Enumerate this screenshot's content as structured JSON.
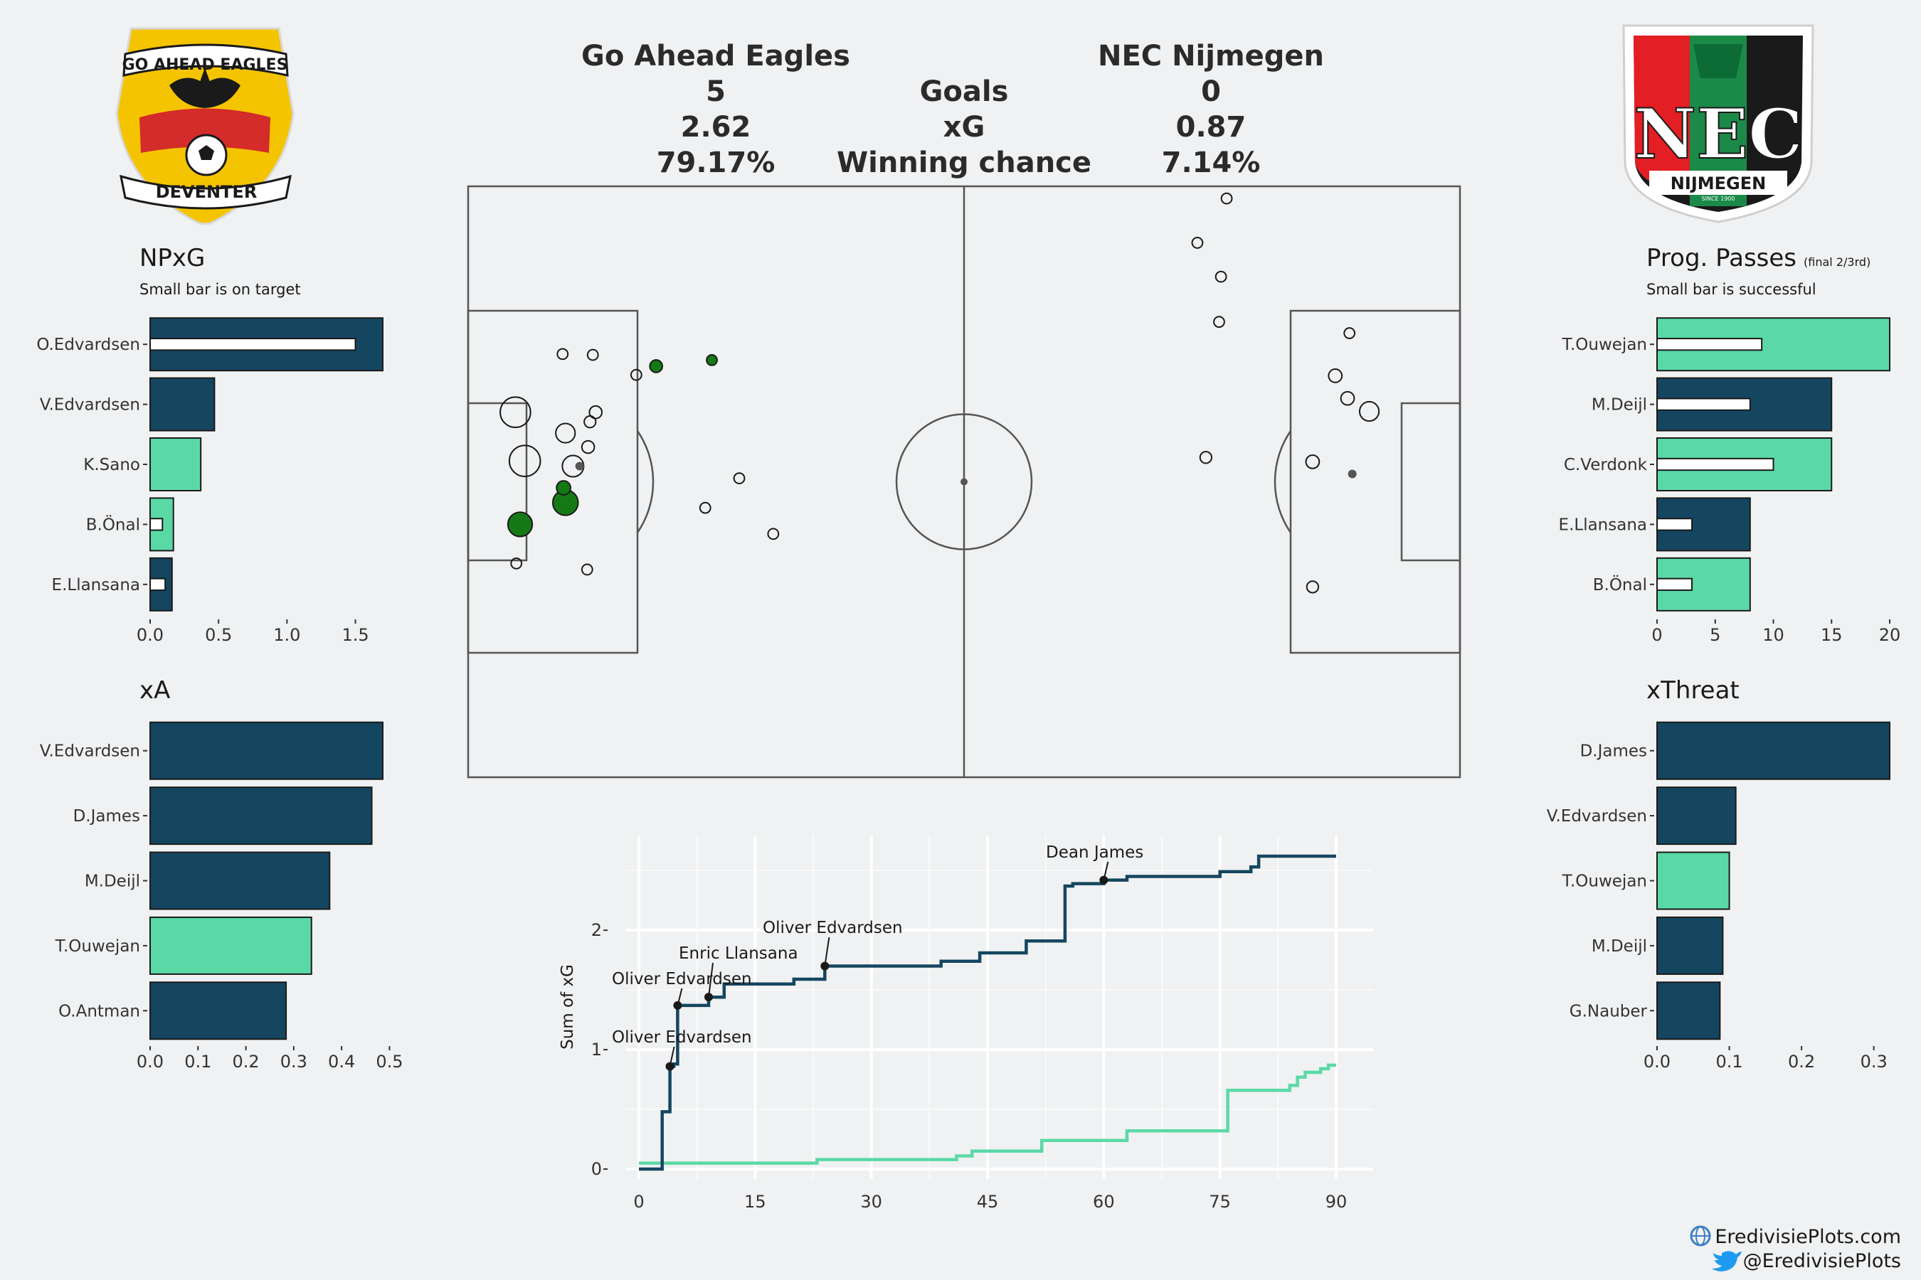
{
  "header": {
    "home_team": "Go Ahead Eagles",
    "away_team": "NEC Nijmegen",
    "rows": [
      {
        "label": "Goals",
        "home": "5",
        "away": "0"
      },
      {
        "label": "xG",
        "home": "2.62",
        "away": "0.87"
      },
      {
        "label": "Winning chance",
        "home": "79.17%",
        "away": "7.14%"
      }
    ]
  },
  "logos": {
    "home": {
      "top": "GO AHEAD EAGLES",
      "bottom": "DEVENTER"
    },
    "away": {
      "main": "NEC",
      "sub": "NIJMEGEN",
      "since": "SINCE 1900"
    }
  },
  "colors": {
    "home": "#154660",
    "away": "#5ad9a6",
    "goal": "#157a15",
    "background": "#f0f1f2"
  },
  "footer": {
    "site": "EredivisiePlots.com",
    "handle": "@EredivisiePlots",
    "icons": [
      "globe-icon",
      "twitter-bird-icon"
    ]
  },
  "chart_data": [
    {
      "id": "npxg",
      "type": "bar",
      "orientation": "horizontal",
      "title": "NPxG",
      "subtitle": "Small bar is on target",
      "categories": [
        "O.Edvardsen",
        "V.Edvardsen",
        "K.Sano",
        "B.Önal",
        "E.Llansana"
      ],
      "team": [
        "home",
        "home",
        "away",
        "away",
        "home"
      ],
      "values": [
        1.7,
        0.47,
        0.37,
        0.17,
        0.16
      ],
      "inner_values": [
        1.5,
        0,
        0,
        0.09,
        0.11
      ],
      "xlim": [
        0,
        1.7
      ],
      "xticks": [
        0,
        0.5,
        1,
        1.5
      ],
      "xtick_labels": [
        "0.0",
        "0.5",
        "1.0",
        "1.5"
      ]
    },
    {
      "id": "xa",
      "type": "bar",
      "orientation": "horizontal",
      "title": "xA",
      "categories": [
        "V.Edvardsen",
        "D.James",
        "M.Deijl",
        "T.Ouwejan",
        "O.Antman"
      ],
      "team": [
        "home",
        "home",
        "home",
        "away",
        "home"
      ],
      "values": [
        0.486,
        0.463,
        0.375,
        0.337,
        0.284
      ],
      "xlim": [
        0,
        0.486
      ],
      "xticks": [
        0,
        0.1,
        0.2,
        0.3,
        0.4,
        0.5
      ],
      "xtick_labels": [
        "0.0",
        "0.1",
        "0.2",
        "0.3",
        "0.4",
        "0.5"
      ]
    },
    {
      "id": "progpasses",
      "type": "bar",
      "orientation": "horizontal",
      "title": "Prog. Passes",
      "title_suffix": "(final 2/3rd)",
      "subtitle": "Small bar is successful",
      "categories": [
        "T.Ouwejan",
        "M.Deijl",
        "C.Verdonk",
        "E.Llansana",
        "B.Önal"
      ],
      "team": [
        "away",
        "home",
        "away",
        "home",
        "away"
      ],
      "values": [
        20,
        15,
        15,
        8,
        8
      ],
      "inner_values": [
        9,
        8,
        10,
        3,
        3
      ],
      "xlim": [
        0,
        20
      ],
      "xticks": [
        0,
        5,
        10,
        15,
        20
      ],
      "xtick_labels": [
        "0",
        "5",
        "10",
        "15",
        "20"
      ]
    },
    {
      "id": "xthreat",
      "type": "bar",
      "orientation": "horizontal",
      "title": "xThreat",
      "categories": [
        "D.James",
        "V.Edvardsen",
        "T.Ouwejan",
        "M.Deijl",
        "G.Nauber"
      ],
      "team": [
        "home",
        "home",
        "away",
        "home",
        "home"
      ],
      "values": [
        0.322,
        0.109,
        0.1,
        0.091,
        0.087
      ],
      "xlim": [
        0,
        0.322
      ],
      "xticks": [
        0,
        0.1,
        0.2,
        0.3
      ],
      "xtick_labels": [
        "0.0",
        "0.1",
        "0.2",
        "0.3"
      ]
    },
    {
      "id": "shotmap",
      "type": "scatter",
      "pitch": {
        "length": 105,
        "width": 68
      },
      "shots": [
        {
          "x": 10.3,
          "y": 39.6,
          "xg": 0.16,
          "team": "home",
          "goal": false,
          "on_target": false
        },
        {
          "x": 11.1,
          "y": 35.8,
          "xg": 0.21,
          "team": "home",
          "goal": false,
          "on_target": false
        },
        {
          "x": 5.5,
          "y": 29.1,
          "xg": 0.3,
          "team": "home",
          "goal": true,
          "on_target": true
        },
        {
          "x": 5.0,
          "y": 42.0,
          "xg": 0.52,
          "team": "home",
          "goal": false,
          "on_target": false
        },
        {
          "x": 11.8,
          "y": 35.8,
          "xg": 0.02,
          "team": "home",
          "goal": false,
          "on_target": true
        },
        {
          "x": 6.0,
          "y": 36.4,
          "xg": 0.55,
          "team": "home",
          "goal": false,
          "on_target": false
        },
        {
          "x": 10.3,
          "y": 31.6,
          "xg": 0.33,
          "team": "home",
          "goal": true,
          "on_target": true
        },
        {
          "x": 10.1,
          "y": 33.3,
          "xg": 0.06,
          "team": "home",
          "goal": true,
          "on_target": true
        },
        {
          "x": 13.5,
          "y": 42.0,
          "xg": 0.04,
          "team": "home",
          "goal": false,
          "on_target": false
        },
        {
          "x": 12.7,
          "y": 38.0,
          "xg": 0.04,
          "team": "home",
          "goal": false,
          "on_target": false
        },
        {
          "x": 10.0,
          "y": 48.7,
          "xg": 0.02,
          "team": "home",
          "goal": false,
          "on_target": false
        },
        {
          "x": 13.2,
          "y": 48.6,
          "xg": 0.02,
          "team": "home",
          "goal": false,
          "on_target": false
        },
        {
          "x": 17.8,
          "y": 46.3,
          "xg": 0.02,
          "team": "home",
          "goal": false,
          "on_target": false
        },
        {
          "x": 19.9,
          "y": 47.3,
          "xg": 0.04,
          "team": "home",
          "goal": true,
          "on_target": true
        },
        {
          "x": 25.8,
          "y": 48.0,
          "xg": 0.02,
          "team": "home",
          "goal": true,
          "on_target": true
        },
        {
          "x": 28.7,
          "y": 34.4,
          "xg": 0.02,
          "team": "home",
          "goal": false,
          "on_target": false
        },
        {
          "x": 25.1,
          "y": 31.0,
          "xg": 0.02,
          "team": "home",
          "goal": false,
          "on_target": false
        },
        {
          "x": 5.1,
          "y": 24.6,
          "xg": 0.02,
          "team": "home",
          "goal": false,
          "on_target": false
        },
        {
          "x": 12.6,
          "y": 23.9,
          "xg": 0.02,
          "team": "home",
          "goal": false,
          "on_target": false
        },
        {
          "x": 32.3,
          "y": 28.0,
          "xg": 0.02,
          "team": "home",
          "goal": false,
          "on_target": false
        },
        {
          "x": 12.9,
          "y": 40.9,
          "xg": 0.03,
          "team": "home",
          "goal": false,
          "on_target": false
        },
        {
          "x": 80.3,
          "y": 66.6,
          "xg": 0.02,
          "team": "away",
          "goal": false,
          "on_target": false
        },
        {
          "x": 77.2,
          "y": 61.5,
          "xg": 0.02,
          "team": "away",
          "goal": false,
          "on_target": false
        },
        {
          "x": 79.7,
          "y": 57.6,
          "xg": 0.02,
          "team": "away",
          "goal": false,
          "on_target": false
        },
        {
          "x": 79.5,
          "y": 52.4,
          "xg": 0.02,
          "team": "away",
          "goal": false,
          "on_target": false
        },
        {
          "x": 78.1,
          "y": 36.8,
          "xg": 0.03,
          "team": "away",
          "goal": false,
          "on_target": false
        },
        {
          "x": 93.3,
          "y": 51.1,
          "xg": 0.02,
          "team": "away",
          "goal": false,
          "on_target": false
        },
        {
          "x": 91.8,
          "y": 46.2,
          "xg": 0.05,
          "team": "away",
          "goal": false,
          "on_target": false
        },
        {
          "x": 93.1,
          "y": 43.6,
          "xg": 0.05,
          "team": "away",
          "goal": false,
          "on_target": false
        },
        {
          "x": 95.4,
          "y": 42.1,
          "xg": 0.16,
          "team": "away",
          "goal": false,
          "on_target": false
        },
        {
          "x": 89.4,
          "y": 36.3,
          "xg": 0.05,
          "team": "away",
          "goal": false,
          "on_target": false
        },
        {
          "x": 93.6,
          "y": 34.9,
          "xg": 0.02,
          "team": "away",
          "goal": false,
          "on_target": true
        },
        {
          "x": 89.4,
          "y": 21.9,
          "xg": 0.03,
          "team": "away",
          "goal": false,
          "on_target": false
        }
      ]
    },
    {
      "id": "xgflow",
      "type": "line",
      "xlabel": "",
      "ylabel": "Sum of xG",
      "xlim": [
        0,
        90
      ],
      "ylim": [
        0,
        2.62
      ],
      "xticks": [
        0,
        15,
        30,
        45,
        60,
        75,
        90
      ],
      "yticks": [
        0,
        1,
        2
      ],
      "series": [
        {
          "team": "home",
          "points": [
            [
              0,
              0
            ],
            [
              3,
              0
            ],
            [
              3,
              0.48
            ],
            [
              4,
              0.48
            ],
            [
              4,
              0.86
            ],
            [
              4.5,
              0.86
            ],
            [
              4.5,
              0.88
            ],
            [
              5,
              0.88
            ],
            [
              5,
              1.37
            ],
            [
              9,
              1.37
            ],
            [
              9,
              1.44
            ],
            [
              11,
              1.44
            ],
            [
              11,
              1.55
            ],
            [
              20,
              1.55
            ],
            [
              20,
              1.59
            ],
            [
              24,
              1.59
            ],
            [
              24,
              1.7
            ],
            [
              39,
              1.7
            ],
            [
              39,
              1.74
            ],
            [
              44,
              1.74
            ],
            [
              44,
              1.81
            ],
            [
              50,
              1.81
            ],
            [
              50,
              1.91
            ],
            [
              55,
              1.91
            ],
            [
              55,
              2.37
            ],
            [
              56,
              2.37
            ],
            [
              56,
              2.39
            ],
            [
              60,
              2.39
            ],
            [
              60,
              2.42
            ],
            [
              63,
              2.42
            ],
            [
              63,
              2.45
            ],
            [
              75,
              2.45
            ],
            [
              75,
              2.49
            ],
            [
              79,
              2.49
            ],
            [
              79,
              2.53
            ],
            [
              80,
              2.53
            ],
            [
              80,
              2.62
            ],
            [
              90,
              2.62
            ]
          ]
        },
        {
          "team": "away",
          "points": [
            [
              0,
              0.05
            ],
            [
              23,
              0.05
            ],
            [
              23,
              0.08
            ],
            [
              41,
              0.08
            ],
            [
              41,
              0.11
            ],
            [
              43,
              0.11
            ],
            [
              43,
              0.15
            ],
            [
              52,
              0.15
            ],
            [
              52,
              0.24
            ],
            [
              63,
              0.24
            ],
            [
              63,
              0.32
            ],
            [
              76,
              0.32
            ],
            [
              76,
              0.66
            ],
            [
              84,
              0.66
            ],
            [
              84,
              0.7
            ],
            [
              85,
              0.7
            ],
            [
              85,
              0.77
            ],
            [
              86,
              0.77
            ],
            [
              86,
              0.81
            ],
            [
              88,
              0.81
            ],
            [
              88,
              0.84
            ],
            [
              89,
              0.84
            ],
            [
              89,
              0.87
            ],
            [
              90,
              0.87
            ]
          ]
        }
      ],
      "goals": [
        {
          "minute": 4,
          "xg": 0.86,
          "team": "home",
          "label": "Oliver Edvardsen"
        },
        {
          "minute": 5,
          "xg": 1.37,
          "team": "home",
          "label": "Oliver Edvardsen"
        },
        {
          "minute": 9,
          "xg": 1.44,
          "team": "home",
          "label": "Enric Llansana"
        },
        {
          "minute": 24,
          "xg": 1.7,
          "team": "home",
          "label": "Oliver Edvardsen"
        },
        {
          "minute": 60,
          "xg": 2.42,
          "team": "home",
          "label": "Dean James"
        }
      ]
    }
  ]
}
